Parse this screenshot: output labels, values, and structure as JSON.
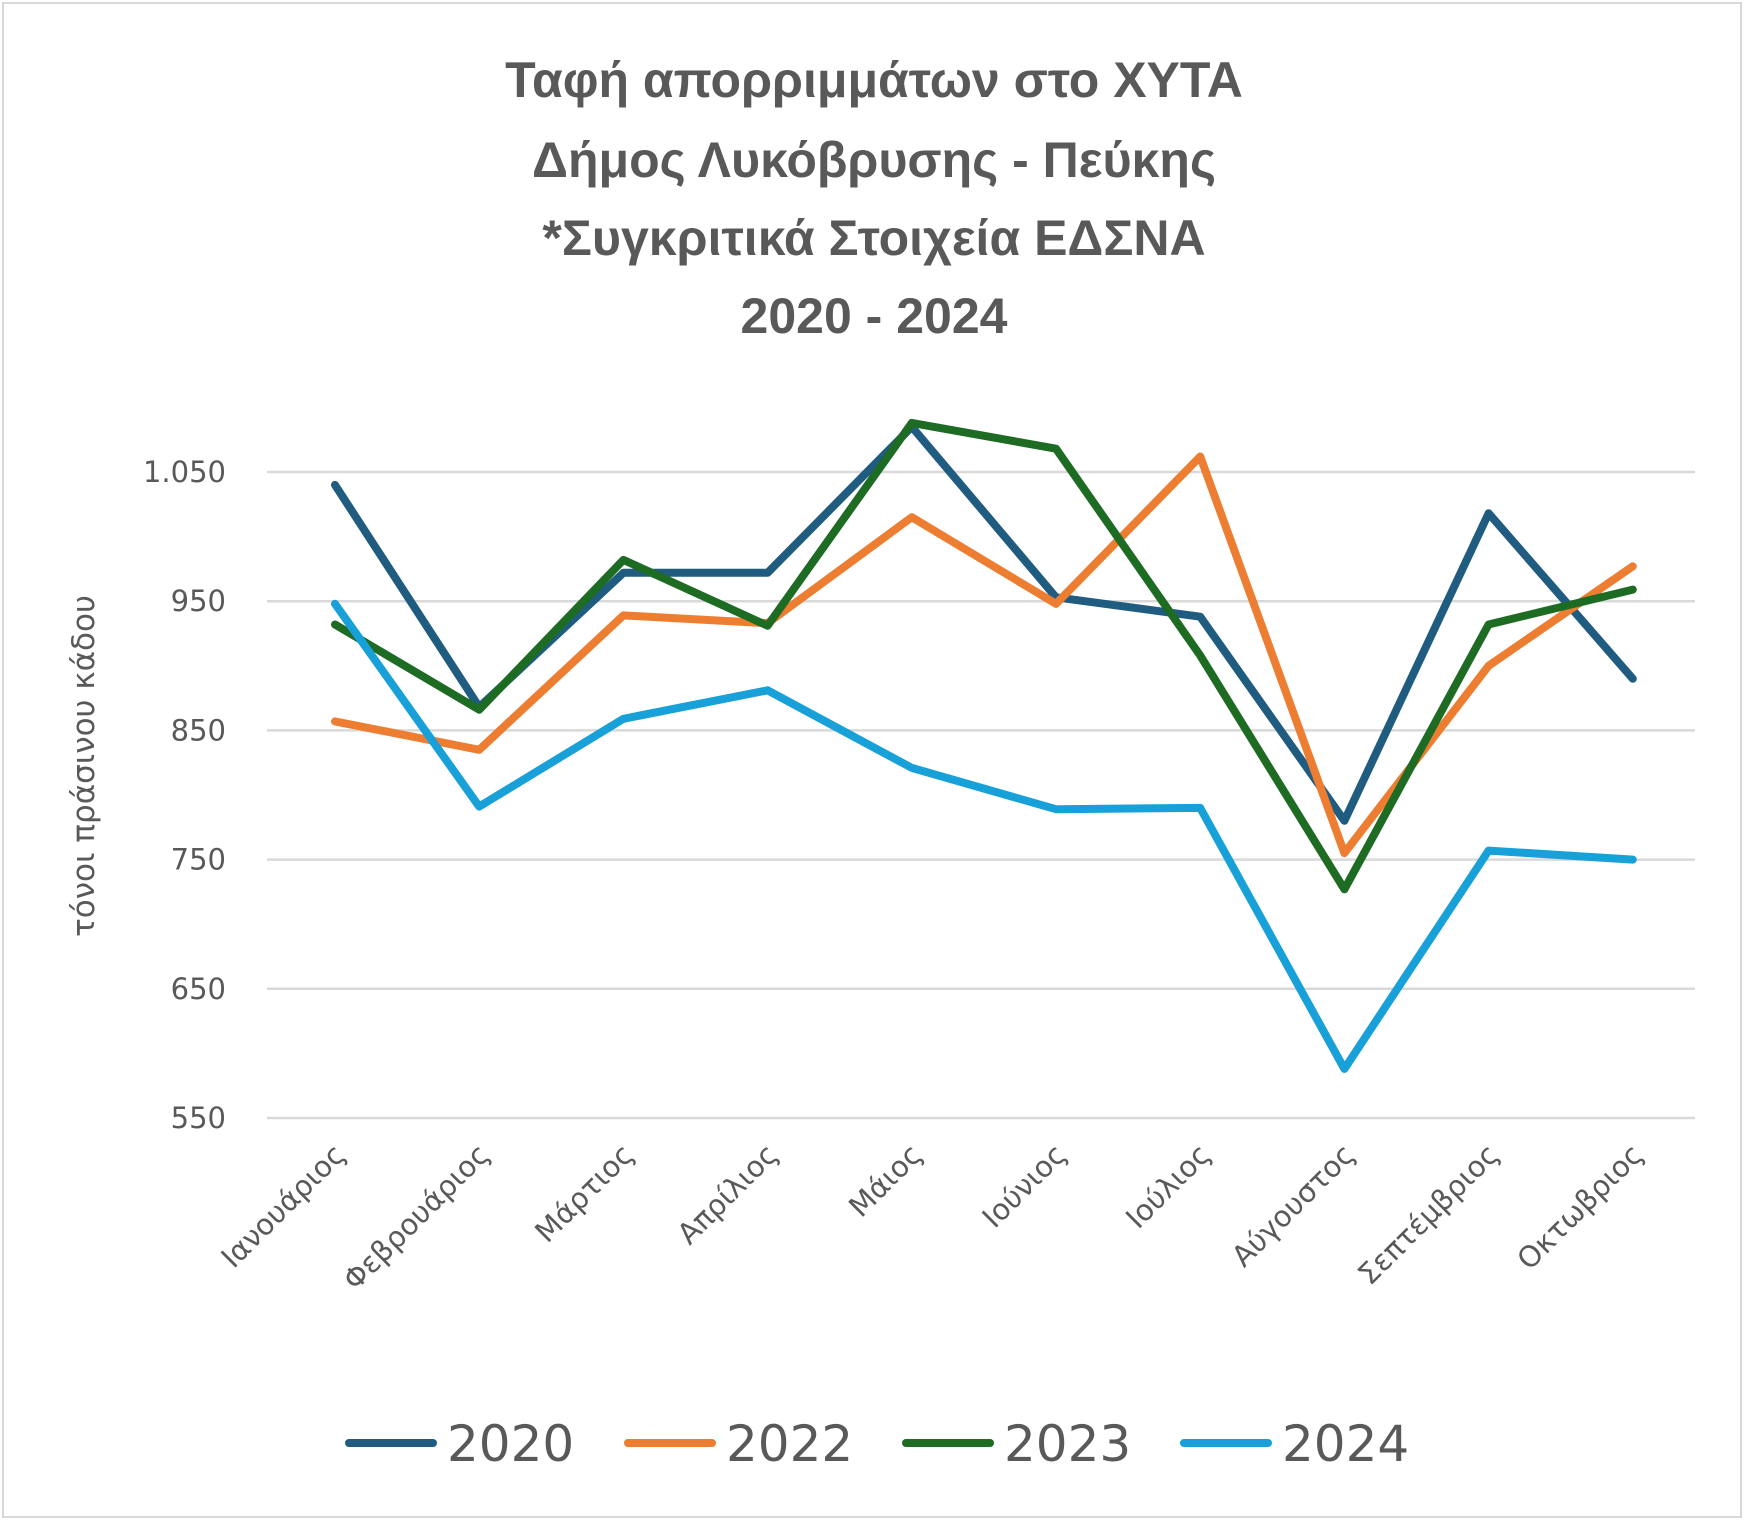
{
  "chart_data": {
    "type": "line",
    "title_lines": [
      "Ταφή απορριμμάτων στο ΧΥΤΑ",
      "Δήμος Λυκόβρυσης - Πεύκης",
      "*Συγκριτικά Στοιχεία ΕΔΣΝΑ",
      "2020 - 2024"
    ],
    "ylabel": "τόνοι πράσινου κάδου",
    "xlabel": "",
    "ylim": [
      550,
      1050
    ],
    "yticks": [
      550,
      650,
      750,
      850,
      950,
      1050
    ],
    "ytick_labels": [
      "550",
      "650",
      "750",
      "850",
      "950",
      "1.050"
    ],
    "grid": true,
    "legend_position": "bottom",
    "categories": [
      "Ιανουάριος",
      "Φεβρουάριος",
      "Μάρτιος",
      "Απρίλιος",
      "Μάιος",
      "Ιούνιος",
      "Ιούλιος",
      "Αύγουστος",
      "Σεπτέμβριος",
      "Οκτωβριος"
    ],
    "series": [
      {
        "name": "2020",
        "color": "#1f5c80",
        "values": [
          1040,
          868,
          972,
          972,
          1085,
          953,
          938,
          780,
          1018,
          890
        ]
      },
      {
        "name": "2022",
        "color": "#ed7d31",
        "values": [
          857,
          835,
          939,
          933,
          1015,
          948,
          1062,
          755,
          900,
          977
        ]
      },
      {
        "name": "2023",
        "color": "#1e6b23",
        "values": [
          932,
          866,
          982,
          931,
          1088,
          1068,
          908,
          727,
          932,
          959
        ]
      },
      {
        "name": "2024",
        "color": "#18a0d8",
        "values": [
          948,
          791,
          859,
          881,
          821,
          789,
          790,
          588,
          757,
          750
        ]
      }
    ]
  }
}
